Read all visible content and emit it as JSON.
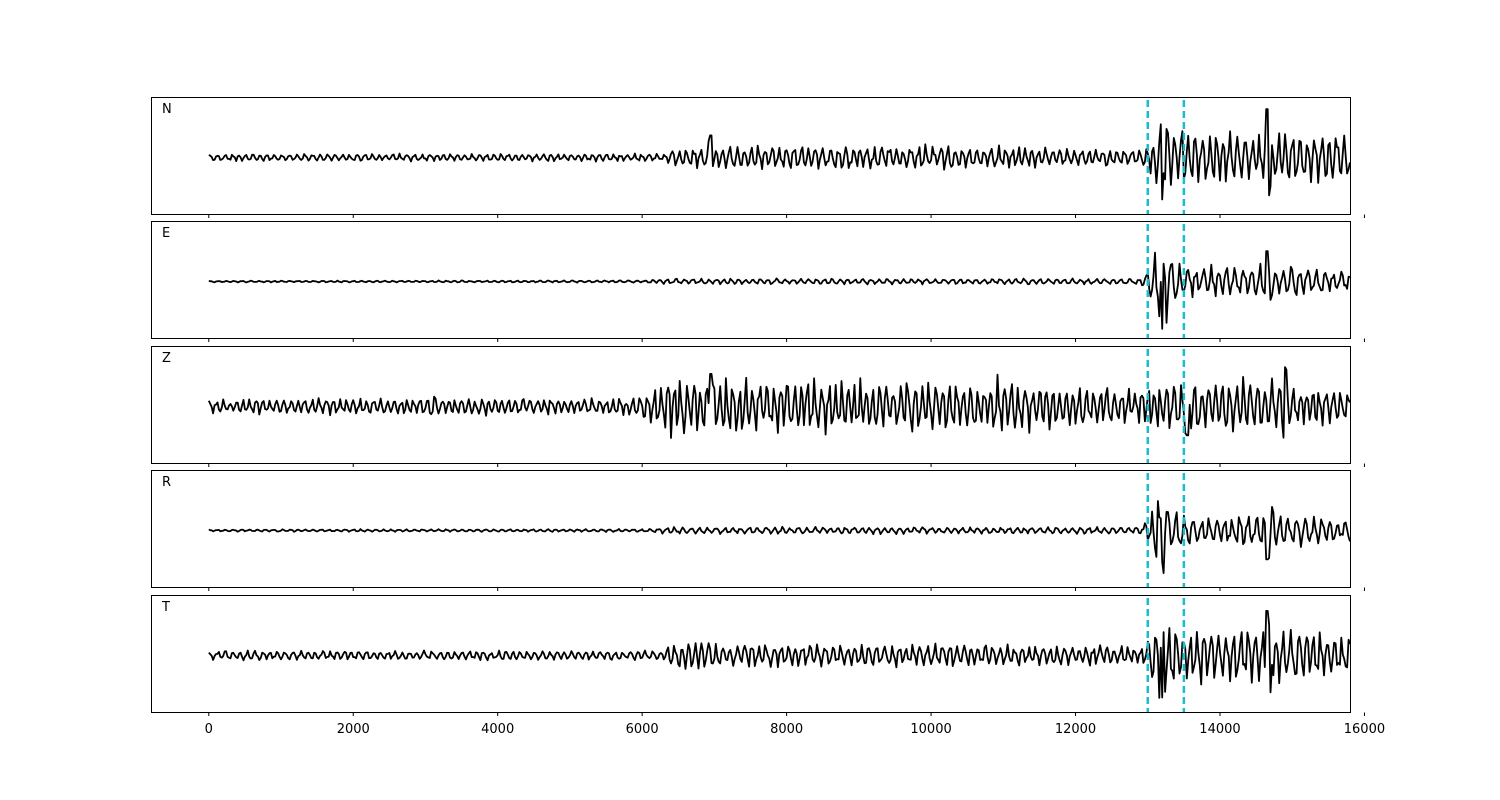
{
  "chart_data": {
    "type": "line",
    "shared_x": true,
    "xlim": [
      -800,
      15800
    ],
    "x_ticks": [
      0,
      2000,
      4000,
      6000,
      8000,
      10000,
      12000,
      14000,
      16000
    ],
    "x_tick_labels": [
      "0",
      "2000",
      "4000",
      "6000",
      "8000",
      "10000",
      "12000",
      "14000",
      "16000"
    ],
    "markers": {
      "x": [
        13000,
        13500
      ],
      "color": "#17becf",
      "style": "dashed"
    },
    "trace_color": "#000000",
    "y_ticks_shown": false,
    "panels": [
      {
        "label": "N",
        "envelope": [
          [
            0,
            0.06
          ],
          [
            6300,
            0.07
          ],
          [
            6400,
            0.15
          ],
          [
            6900,
            0.2
          ],
          [
            6950,
            0.45
          ],
          [
            7000,
            0.2
          ],
          [
            10200,
            0.22
          ],
          [
            10250,
            0.32
          ],
          [
            10300,
            0.2
          ],
          [
            12900,
            0.15
          ],
          [
            13000,
            0.25
          ],
          [
            13200,
            0.7
          ],
          [
            13400,
            0.55
          ],
          [
            14000,
            0.45
          ],
          [
            14600,
            0.4
          ],
          [
            14650,
            0.9
          ],
          [
            14700,
            0.5
          ],
          [
            15800,
            0.45
          ]
        ],
        "period": 100,
        "spikes": [
          [
            6950,
            0.42
          ],
          [
            13200,
            -0.8
          ],
          [
            14650,
            0.92
          ],
          [
            14700,
            -0.55
          ]
        ]
      },
      {
        "label": "E",
        "envelope": [
          [
            0,
            0.015
          ],
          [
            6000,
            0.02
          ],
          [
            6400,
            0.05
          ],
          [
            8000,
            0.05
          ],
          [
            12900,
            0.05
          ],
          [
            13000,
            0.2
          ],
          [
            13100,
            0.55
          ],
          [
            13200,
            0.9
          ],
          [
            13300,
            0.5
          ],
          [
            13500,
            0.25
          ],
          [
            14600,
            0.3
          ],
          [
            14650,
            0.6
          ],
          [
            14700,
            0.3
          ],
          [
            15800,
            0.2
          ]
        ],
        "period": 110,
        "spikes": [
          [
            13100,
            0.55
          ],
          [
            13200,
            -0.9
          ],
          [
            14650,
            0.58
          ],
          [
            14700,
            -0.35
          ]
        ]
      },
      {
        "label": "Z",
        "envelope": [
          [
            0,
            0.12
          ],
          [
            3000,
            0.15
          ],
          [
            3100,
            0.25
          ],
          [
            3200,
            0.15
          ],
          [
            5900,
            0.15
          ],
          [
            6200,
            0.35
          ],
          [
            6400,
            0.6
          ],
          [
            6500,
            0.5
          ],
          [
            7000,
            0.6
          ],
          [
            7500,
            0.45
          ],
          [
            10800,
            0.45
          ],
          [
            10900,
            0.6
          ],
          [
            11000,
            0.45
          ],
          [
            12900,
            0.3
          ],
          [
            13000,
            0.4
          ],
          [
            13500,
            0.45
          ],
          [
            14800,
            0.5
          ],
          [
            14900,
            0.75
          ],
          [
            15000,
            0.4
          ],
          [
            15800,
            0.3
          ]
        ],
        "period": 95,
        "spikes": [
          [
            6400,
            -0.6
          ],
          [
            6950,
            0.62
          ],
          [
            14900,
            0.75
          ],
          [
            13550,
            -0.55
          ]
        ]
      },
      {
        "label": "R",
        "envelope": [
          [
            0,
            0.02
          ],
          [
            6000,
            0.025
          ],
          [
            6400,
            0.06
          ],
          [
            12900,
            0.06
          ],
          [
            13000,
            0.2
          ],
          [
            13200,
            0.95
          ],
          [
            13300,
            0.4
          ],
          [
            13600,
            0.25
          ],
          [
            14600,
            0.3
          ],
          [
            14700,
            0.6
          ],
          [
            14800,
            0.3
          ],
          [
            15800,
            0.2
          ]
        ],
        "period": 110,
        "spikes": [
          [
            13200,
            0.95
          ],
          [
            13200,
            -0.6
          ],
          [
            14650,
            -0.55
          ],
          [
            14720,
            0.45
          ]
        ]
      },
      {
        "label": "T",
        "envelope": [
          [
            0,
            0.08
          ],
          [
            6300,
            0.08
          ],
          [
            6400,
            0.2
          ],
          [
            6900,
            0.3
          ],
          [
            7000,
            0.2
          ],
          [
            10200,
            0.2
          ],
          [
            10300,
            0.3
          ],
          [
            10400,
            0.2
          ],
          [
            12900,
            0.15
          ],
          [
            13000,
            0.3
          ],
          [
            13200,
            0.75
          ],
          [
            13500,
            0.5
          ],
          [
            14600,
            0.45
          ],
          [
            14650,
            0.85
          ],
          [
            14700,
            0.5
          ],
          [
            15800,
            0.35
          ]
        ],
        "period": 100,
        "spikes": [
          [
            13200,
            -0.8
          ],
          [
            14650,
            0.85
          ],
          [
            14700,
            -0.7
          ],
          [
            15780,
            0.3
          ]
        ]
      }
    ]
  }
}
